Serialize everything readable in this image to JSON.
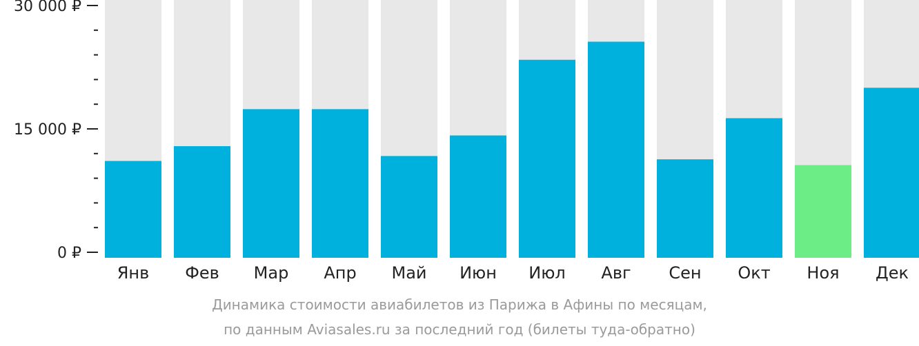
{
  "chart_data": {
    "type": "bar",
    "categories": [
      "Янв",
      "Фев",
      "Мар",
      "Апр",
      "Май",
      "Июн",
      "Июл",
      "Авг",
      "Сен",
      "Окт",
      "Ноя",
      "Дек"
    ],
    "values": [
      11100,
      12900,
      17400,
      17400,
      11700,
      14200,
      23400,
      25600,
      11300,
      16300,
      10600,
      20000
    ],
    "ylim": [
      0,
      30000
    ],
    "yticks": [
      {
        "value": 0,
        "label": "0 ₽"
      },
      {
        "value": 15000,
        "label": "15 000 ₽"
      },
      {
        "value": 30000,
        "label": "30 000 ₽"
      }
    ],
    "minor_tick_step": 3000,
    "highlight_index": 10,
    "colors": {
      "bar": "#00b0dd",
      "highlight": "#6ded86",
      "background_bar": "#e8e8e8",
      "axis": "#222222"
    },
    "caption": [
      "Динамика стоимости авиабилетов из Парижа в Афины по месяцам,",
      "по данным Aviasales.ru за последний год (билеты туда-обратно)"
    ]
  }
}
